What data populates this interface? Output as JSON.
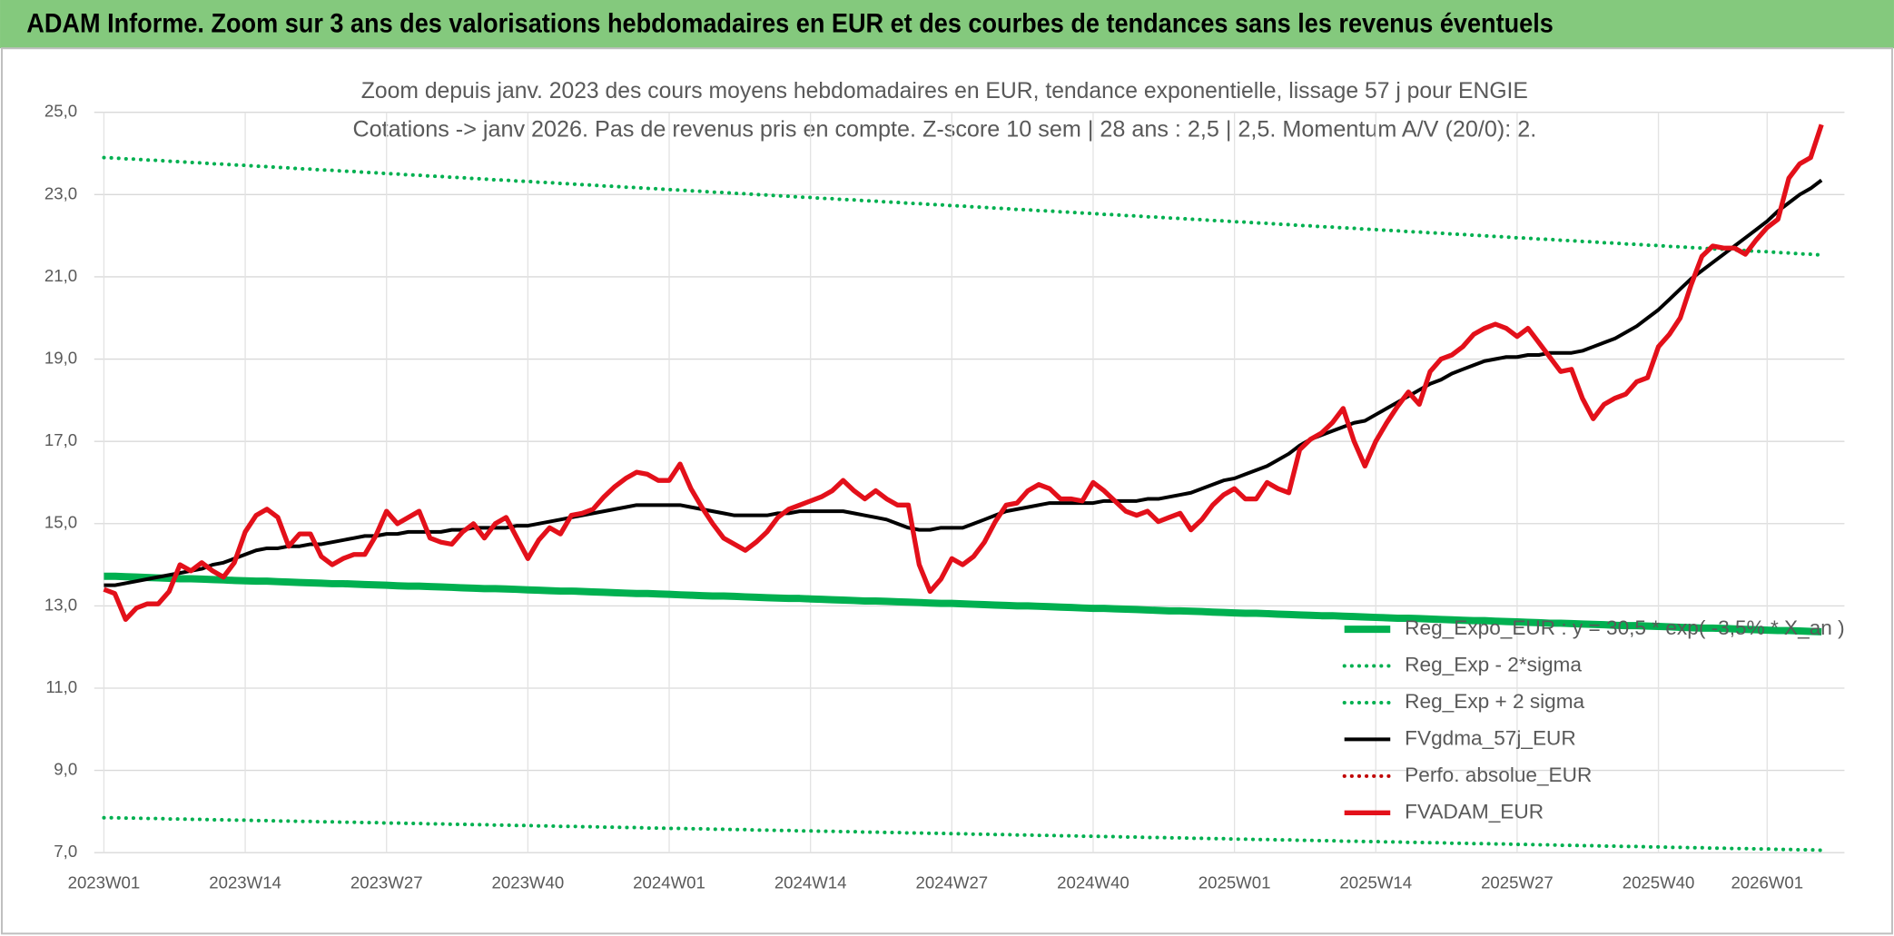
{
  "chart_data": {
    "type": "line",
    "header": "ADAM Informe. Zoom sur 3 ans des valorisations hebdomadaires en EUR et des courbes de tendances sans les revenus éventuels",
    "title": "Zoom depuis janv. 2023 des cours moyens hebdomadaires en EUR, tendance exponentielle, lissage 57 j pour ENGIE",
    "subtitle": "Cotations -> janv 2026. Pas de revenus pris en compte. Z-score 10 sem | 28 ans : 2,5 | 2,5. Momentum A/V (20/0): 2.",
    "categories": [
      "2023W01",
      null,
      null,
      null,
      null,
      null,
      null,
      null,
      null,
      null,
      null,
      null,
      null,
      "2023W14",
      null,
      null,
      null,
      null,
      null,
      null,
      null,
      null,
      null,
      null,
      null,
      null,
      "2023W27",
      null,
      null,
      null,
      null,
      null,
      null,
      null,
      null,
      null,
      null,
      null,
      null,
      "2023W40",
      null,
      null,
      null,
      null,
      null,
      null,
      null,
      null,
      null,
      null,
      null,
      null,
      "2024W01",
      null,
      null,
      null,
      null,
      null,
      null,
      null,
      null,
      null,
      null,
      null,
      null,
      "2024W14",
      null,
      null,
      null,
      null,
      null,
      null,
      null,
      null,
      null,
      null,
      null,
      null,
      "2024W27",
      null,
      null,
      null,
      null,
      null,
      null,
      null,
      null,
      null,
      null,
      null,
      null,
      "2024W40",
      null,
      null,
      null,
      null,
      null,
      null,
      null,
      null,
      null,
      null,
      null,
      null,
      "2025W01",
      null,
      null,
      null,
      null,
      null,
      null,
      null,
      null,
      null,
      null,
      null,
      null,
      "2025W14",
      null,
      null,
      null,
      null,
      null,
      null,
      null,
      null,
      null,
      null,
      null,
      null,
      "2025W27",
      null,
      null,
      null,
      null,
      null,
      null,
      null,
      null,
      null,
      null,
      null,
      null,
      "2025W40",
      null,
      null,
      null,
      null,
      null,
      null,
      null,
      null,
      null,
      "2026W01",
      null,
      null,
      null,
      null,
      null
    ],
    "ylim": [
      7,
      25
    ],
    "yticks": [
      {
        "value": 7,
        "label": "7,0"
      },
      {
        "value": 9,
        "label": "9,0"
      },
      {
        "value": 11,
        "label": "11,0"
      },
      {
        "value": 13,
        "label": "13,0"
      },
      {
        "value": 15,
        "label": "15,0"
      },
      {
        "value": 17,
        "label": "17,0"
      },
      {
        "value": 19,
        "label": "19,0"
      },
      {
        "value": 21,
        "label": "21,0"
      },
      {
        "value": 23,
        "label": "23,0"
      },
      {
        "value": 25,
        "label": "25,0"
      }
    ],
    "grid": true,
    "legend": "lower right",
    "series": [
      {
        "name": "Reg_Expo_EUR : y = 30,5 * exp( -3,5% * X_an )",
        "color": "#00b050",
        "style": "bold",
        "values": [
          13.72,
          13.72,
          13.71,
          13.7,
          13.69,
          13.68,
          13.67,
          13.66,
          13.66,
          13.65,
          13.64,
          13.63,
          13.62,
          13.61,
          13.6,
          13.6,
          13.59,
          13.58,
          13.57,
          13.56,
          13.55,
          13.54,
          13.54,
          13.53,
          13.52,
          13.51,
          13.5,
          13.49,
          13.48,
          13.48,
          13.47,
          13.46,
          13.45,
          13.44,
          13.43,
          13.42,
          13.42,
          13.41,
          13.4,
          13.39,
          13.38,
          13.37,
          13.36,
          13.36,
          13.35,
          13.34,
          13.33,
          13.32,
          13.31,
          13.3,
          13.3,
          13.29,
          13.28,
          13.27,
          13.26,
          13.25,
          13.24,
          13.24,
          13.23,
          13.22,
          13.21,
          13.2,
          13.19,
          13.18,
          13.18,
          13.17,
          13.16,
          13.15,
          13.14,
          13.13,
          13.12,
          13.12,
          13.11,
          13.1,
          13.09,
          13.08,
          13.07,
          13.06,
          13.06,
          13.05,
          13.04,
          13.03,
          13.02,
          13.01,
          13.0,
          13.0,
          12.99,
          12.98,
          12.97,
          12.96,
          12.95,
          12.94,
          12.94,
          12.93,
          12.92,
          12.91,
          12.9,
          12.89,
          12.88,
          12.88,
          12.87,
          12.86,
          12.85,
          12.84,
          12.83,
          12.82,
          12.82,
          12.81,
          12.8,
          12.79,
          12.78,
          12.77,
          12.76,
          12.76,
          12.75,
          12.74,
          12.73,
          12.72,
          12.71,
          12.7,
          12.7,
          12.69,
          12.68,
          12.67,
          12.66,
          12.65,
          12.64,
          12.64,
          12.63,
          12.62,
          12.61,
          12.6,
          12.59,
          12.58,
          12.58,
          12.57,
          12.56,
          12.55,
          12.54,
          12.53,
          12.52,
          12.52,
          12.51,
          12.5,
          12.49,
          12.48,
          12.47,
          12.46,
          12.46,
          12.45,
          12.44,
          12.43,
          12.42,
          12.41,
          12.4,
          12.4,
          12.39,
          12.38,
          12.37
        ]
      },
      {
        "name": "Reg_Exp - 2*sigma",
        "color": "#00b050",
        "style": "dotted",
        "values": [
          7.85,
          7.85,
          7.84,
          7.84,
          7.83,
          7.83,
          7.82,
          7.82,
          7.81,
          7.81,
          7.8,
          7.8,
          7.79,
          7.79,
          7.78,
          7.78,
          7.77,
          7.77,
          7.76,
          7.76,
          7.75,
          7.75,
          7.74,
          7.74,
          7.73,
          7.73,
          7.72,
          7.72,
          7.71,
          7.71,
          7.7,
          7.7,
          7.69,
          7.69,
          7.68,
          7.68,
          7.67,
          7.67,
          7.66,
          7.66,
          7.65,
          7.65,
          7.64,
          7.64,
          7.63,
          7.63,
          7.62,
          7.62,
          7.61,
          7.61,
          7.6,
          7.6,
          7.59,
          7.59,
          7.58,
          7.58,
          7.57,
          7.57,
          7.56,
          7.56,
          7.55,
          7.55,
          7.54,
          7.54,
          7.53,
          7.53,
          7.52,
          7.52,
          7.51,
          7.51,
          7.5,
          7.5,
          7.49,
          7.49,
          7.48,
          7.48,
          7.47,
          7.47,
          7.46,
          7.46,
          7.45,
          7.45,
          7.44,
          7.44,
          7.43,
          7.43,
          7.42,
          7.42,
          7.41,
          7.41,
          7.4,
          7.4,
          7.39,
          7.39,
          7.38,
          7.38,
          7.37,
          7.37,
          7.36,
          7.36,
          7.35,
          7.35,
          7.34,
          7.34,
          7.33,
          7.33,
          7.32,
          7.32,
          7.31,
          7.31,
          7.3,
          7.3,
          7.29,
          7.29,
          7.28,
          7.28,
          7.27,
          7.27,
          7.26,
          7.26,
          7.25,
          7.25,
          7.24,
          7.24,
          7.23,
          7.23,
          7.22,
          7.22,
          7.21,
          7.21,
          7.2,
          7.2,
          7.19,
          7.19,
          7.18,
          7.18,
          7.17,
          7.17,
          7.16,
          7.16,
          7.15,
          7.15,
          7.14,
          7.14,
          7.13,
          7.13,
          7.12,
          7.12,
          7.11,
          7.11,
          7.1,
          7.1,
          7.09,
          7.09,
          7.08,
          7.08,
          7.07,
          7.07,
          7.06
        ]
      },
      {
        "name": "Reg_Exp + 2 sigma",
        "color": "#00b050",
        "style": "dotted",
        "values": [
          23.9,
          23.89,
          23.87,
          23.86,
          23.84,
          23.83,
          23.81,
          23.8,
          23.78,
          23.77,
          23.75,
          23.74,
          23.72,
          23.71,
          23.69,
          23.68,
          23.66,
          23.65,
          23.63,
          23.62,
          23.6,
          23.59,
          23.57,
          23.56,
          23.54,
          23.53,
          23.51,
          23.5,
          23.48,
          23.47,
          23.45,
          23.44,
          23.42,
          23.41,
          23.39,
          23.38,
          23.36,
          23.35,
          23.33,
          23.32,
          23.3,
          23.29,
          23.27,
          23.26,
          23.24,
          23.23,
          23.21,
          23.2,
          23.18,
          23.17,
          23.15,
          23.14,
          23.12,
          23.11,
          23.09,
          23.08,
          23.06,
          23.05,
          23.03,
          23.02,
          23.0,
          22.99,
          22.97,
          22.96,
          22.94,
          22.93,
          22.91,
          22.9,
          22.88,
          22.87,
          22.85,
          22.84,
          22.82,
          22.81,
          22.79,
          22.78,
          22.76,
          22.75,
          22.73,
          22.72,
          22.7,
          22.69,
          22.67,
          22.66,
          22.64,
          22.63,
          22.61,
          22.6,
          22.58,
          22.57,
          22.55,
          22.54,
          22.52,
          22.51,
          22.49,
          22.48,
          22.46,
          22.45,
          22.43,
          22.42,
          22.4,
          22.39,
          22.37,
          22.36,
          22.34,
          22.33,
          22.31,
          22.3,
          22.28,
          22.27,
          22.25,
          22.24,
          22.22,
          22.21,
          22.19,
          22.18,
          22.16,
          22.15,
          22.13,
          22.12,
          22.1,
          22.09,
          22.07,
          22.06,
          22.04,
          22.03,
          22.01,
          22.0,
          21.98,
          21.97,
          21.95,
          21.94,
          21.92,
          21.91,
          21.89,
          21.88,
          21.86,
          21.85,
          21.83,
          21.82,
          21.8,
          21.79,
          21.77,
          21.76,
          21.74,
          21.73,
          21.71,
          21.7,
          21.68,
          21.67,
          21.65,
          21.64,
          21.62,
          21.61,
          21.59,
          21.58,
          21.56,
          21.55,
          21.53
        ]
      },
      {
        "name": "FVgdma_57j_EUR",
        "color": "#000000",
        "style": "solid",
        "values": [
          13.5,
          13.5,
          13.55,
          13.6,
          13.65,
          13.7,
          13.75,
          13.8,
          13.85,
          13.9,
          14.0,
          14.05,
          14.15,
          14.25,
          14.35,
          14.4,
          14.4,
          14.45,
          14.45,
          14.5,
          14.5,
          14.55,
          14.6,
          14.65,
          14.7,
          14.7,
          14.75,
          14.75,
          14.8,
          14.8,
          14.8,
          14.8,
          14.85,
          14.85,
          14.9,
          14.9,
          14.9,
          14.9,
          14.95,
          14.95,
          15.0,
          15.05,
          15.1,
          15.15,
          15.2,
          15.25,
          15.3,
          15.35,
          15.4,
          15.45,
          15.45,
          15.45,
          15.45,
          15.45,
          15.4,
          15.35,
          15.3,
          15.25,
          15.2,
          15.2,
          15.2,
          15.2,
          15.25,
          15.25,
          15.3,
          15.3,
          15.3,
          15.3,
          15.3,
          15.25,
          15.2,
          15.15,
          15.1,
          15.0,
          14.9,
          14.85,
          14.85,
          14.9,
          14.9,
          14.9,
          15.0,
          15.1,
          15.2,
          15.3,
          15.35,
          15.4,
          15.45,
          15.5,
          15.5,
          15.5,
          15.5,
          15.5,
          15.55,
          15.55,
          15.55,
          15.55,
          15.6,
          15.6,
          15.65,
          15.7,
          15.75,
          15.85,
          15.95,
          16.05,
          16.1,
          16.2,
          16.3,
          16.4,
          16.55,
          16.7,
          16.9,
          17.05,
          17.15,
          17.25,
          17.35,
          17.45,
          17.5,
          17.65,
          17.8,
          17.95,
          18.1,
          18.25,
          18.4,
          18.5,
          18.65,
          18.75,
          18.85,
          18.95,
          19.0,
          19.05,
          19.05,
          19.1,
          19.1,
          19.15,
          19.15,
          19.15,
          19.2,
          19.3,
          19.4,
          19.5,
          19.65,
          19.8,
          20.0,
          20.2,
          20.45,
          20.7,
          20.95,
          21.15,
          21.35,
          21.55,
          21.75,
          21.95,
          22.15,
          22.35,
          22.6,
          22.8,
          23.0,
          23.15,
          23.35
        ]
      },
      {
        "name": "Perfo. absolue_EUR",
        "color": "#c00000",
        "style": "dotted",
        "values": [
          null,
          null,
          null,
          null,
          null,
          null,
          null,
          null,
          null,
          null,
          null,
          null,
          null,
          null,
          null,
          null,
          null,
          null,
          null,
          null,
          null,
          null,
          null,
          null,
          null,
          null,
          null,
          null,
          null,
          null,
          null,
          null,
          null,
          null,
          null,
          null,
          null,
          null,
          null,
          null,
          null,
          null,
          null,
          null,
          null,
          null,
          null,
          null,
          null,
          null,
          null,
          null,
          null,
          null,
          null,
          null,
          null,
          null,
          null,
          null,
          null,
          null,
          null,
          null,
          null,
          null,
          null,
          null,
          null,
          null,
          null,
          null,
          null,
          null,
          null,
          null,
          null,
          null,
          null,
          null,
          null,
          null,
          null,
          null,
          null,
          null,
          null,
          null,
          null,
          null,
          null,
          null,
          null,
          null,
          null,
          null,
          null,
          null,
          null,
          null,
          null,
          null,
          null,
          null,
          null,
          null,
          null,
          null,
          null,
          null,
          null,
          null,
          null,
          null,
          null,
          null,
          null,
          null,
          null,
          null,
          null,
          null,
          null,
          null,
          null,
          null,
          null,
          null,
          null,
          null,
          null,
          null,
          null,
          null,
          null,
          null,
          null,
          null,
          null,
          null,
          null,
          null,
          null,
          null,
          null,
          null,
          null,
          null,
          null,
          null,
          null,
          null,
          null,
          null,
          null,
          null,
          null,
          null,
          null
        ]
      },
      {
        "name": "FVADAM_EUR",
        "color": "#e3101a",
        "style": "bold-solid",
        "values": [
          13.4,
          13.3,
          12.67,
          12.95,
          13.05,
          13.05,
          13.35,
          14.0,
          13.85,
          14.05,
          13.85,
          13.7,
          14.05,
          14.8,
          15.2,
          15.35,
          15.15,
          14.45,
          14.75,
          14.75,
          14.2,
          14.0,
          14.15,
          14.25,
          14.25,
          14.7,
          15.3,
          15.0,
          15.15,
          15.3,
          14.65,
          14.55,
          14.5,
          14.8,
          15.0,
          14.65,
          15.0,
          15.15,
          14.65,
          14.15,
          14.6,
          14.9,
          14.75,
          15.2,
          15.25,
          15.35,
          15.65,
          15.9,
          16.1,
          16.25,
          16.2,
          16.05,
          16.05,
          16.45,
          15.85,
          15.4,
          15.0,
          14.65,
          14.5,
          14.35,
          14.55,
          14.8,
          15.15,
          15.35,
          15.45,
          15.55,
          15.65,
          15.8,
          16.05,
          15.8,
          15.6,
          15.8,
          15.6,
          15.45,
          15.45,
          14.0,
          13.35,
          13.65,
          14.15,
          14.0,
          14.2,
          14.55,
          15.05,
          15.45,
          15.5,
          15.8,
          15.95,
          15.85,
          15.6,
          15.6,
          15.55,
          16.0,
          15.8,
          15.55,
          15.3,
          15.2,
          15.3,
          15.05,
          15.15,
          15.25,
          14.85,
          15.1,
          15.45,
          15.7,
          15.85,
          15.6,
          15.6,
          16.0,
          15.85,
          15.75,
          16.8,
          17.05,
          17.2,
          17.45,
          17.8,
          17.0,
          16.4,
          17.0,
          17.45,
          17.85,
          18.2,
          17.9,
          18.7,
          19.0,
          19.1,
          19.3,
          19.6,
          19.75,
          19.85,
          19.75,
          19.55,
          19.75,
          19.4,
          19.05,
          18.7,
          18.75,
          18.05,
          17.55,
          17.9,
          18.05,
          18.15,
          18.45,
          18.55,
          19.3,
          19.6,
          20.0,
          20.8,
          21.5,
          21.75,
          21.7,
          21.7,
          21.55,
          21.9,
          22.2,
          22.4,
          23.4,
          23.75,
          23.9,
          24.7
        ]
      }
    ]
  }
}
